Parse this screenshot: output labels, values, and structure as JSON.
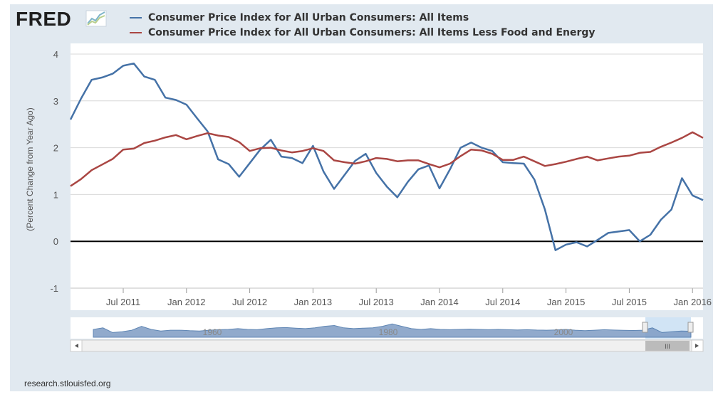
{
  "header": {
    "logo_text": "FRED",
    "logo_icon": "fred-chart-icon",
    "source": "research.stlouisfed.org"
  },
  "colors": {
    "frame": "#e1e9f0",
    "series_all_items": "#4572a7",
    "series_core": "#aa4643",
    "zero_line": "#000000",
    "grid": "#d8d8d8",
    "navigator_fill": "#7e9cc4",
    "navigator_selection": "#c6ddf2"
  },
  "chart_data": {
    "type": "line",
    "title": "",
    "xlabel": "",
    "ylabel": "(Percent Change from Year Ago)",
    "ylim": [
      -1,
      4
    ],
    "yticks": [
      "-1",
      "0",
      "1",
      "2",
      "3",
      "4"
    ],
    "xticks": [
      "Jul 2011",
      "Jan 2012",
      "Jul 2012",
      "Jan 2013",
      "Jul 2013",
      "Jan 2014",
      "Jul 2014",
      "Jan 2015",
      "Jul 2015",
      "Jan 2016"
    ],
    "x_start": "Feb 2011",
    "x_end": "Apr 2016",
    "grid": true,
    "legend_position": "top",
    "reference_line": 0,
    "series": [
      {
        "name": "Consumer Price Index for All Urban Consumers: All Items",
        "color": "#4572a7",
        "values": [
          2.6,
          3.05,
          3.45,
          3.5,
          3.58,
          3.75,
          3.8,
          3.52,
          3.45,
          3.07,
          3.02,
          2.92,
          2.63,
          2.35,
          1.75,
          1.65,
          1.38,
          1.67,
          1.96,
          2.17,
          1.81,
          1.78,
          1.67,
          2.04,
          1.49,
          1.12,
          1.42,
          1.72,
          1.87,
          1.46,
          1.17,
          0.94,
          1.27,
          1.54,
          1.62,
          1.13,
          1.54,
          2.0,
          2.11,
          2.0,
          1.93,
          1.69,
          1.67,
          1.66,
          1.32,
          0.68,
          -0.19,
          -0.07,
          -0.02,
          -0.11,
          0.03,
          0.18,
          0.21,
          0.24,
          0.0,
          0.14,
          0.46,
          0.68,
          1.35,
          0.98,
          0.88
        ]
      },
      {
        "name": "Consumer Price Index for All Urban Consumers: All Items Less Food and Energy",
        "color": "#aa4643",
        "values": [
          1.18,
          1.33,
          1.52,
          1.64,
          1.76,
          1.96,
          1.98,
          2.1,
          2.15,
          2.22,
          2.27,
          2.18,
          2.25,
          2.31,
          2.26,
          2.23,
          2.12,
          1.93,
          1.99,
          2.0,
          1.94,
          1.9,
          1.93,
          1.99,
          1.93,
          1.73,
          1.69,
          1.66,
          1.71,
          1.78,
          1.76,
          1.71,
          1.73,
          1.73,
          1.65,
          1.58,
          1.66,
          1.82,
          1.96,
          1.94,
          1.87,
          1.74,
          1.74,
          1.81,
          1.71,
          1.61,
          1.65,
          1.7,
          1.76,
          1.81,
          1.73,
          1.77,
          1.81,
          1.83,
          1.89,
          1.91,
          2.02,
          2.11,
          2.21,
          2.33,
          2.21
        ]
      }
    ]
  },
  "navigator": {
    "labels": [
      "1960",
      "1980",
      "2000"
    ],
    "scroll_left_icon": "arrow-left-icon",
    "scroll_right_icon": "arrow-right-icon",
    "scroll_thumb_icon": "grip-icon"
  }
}
